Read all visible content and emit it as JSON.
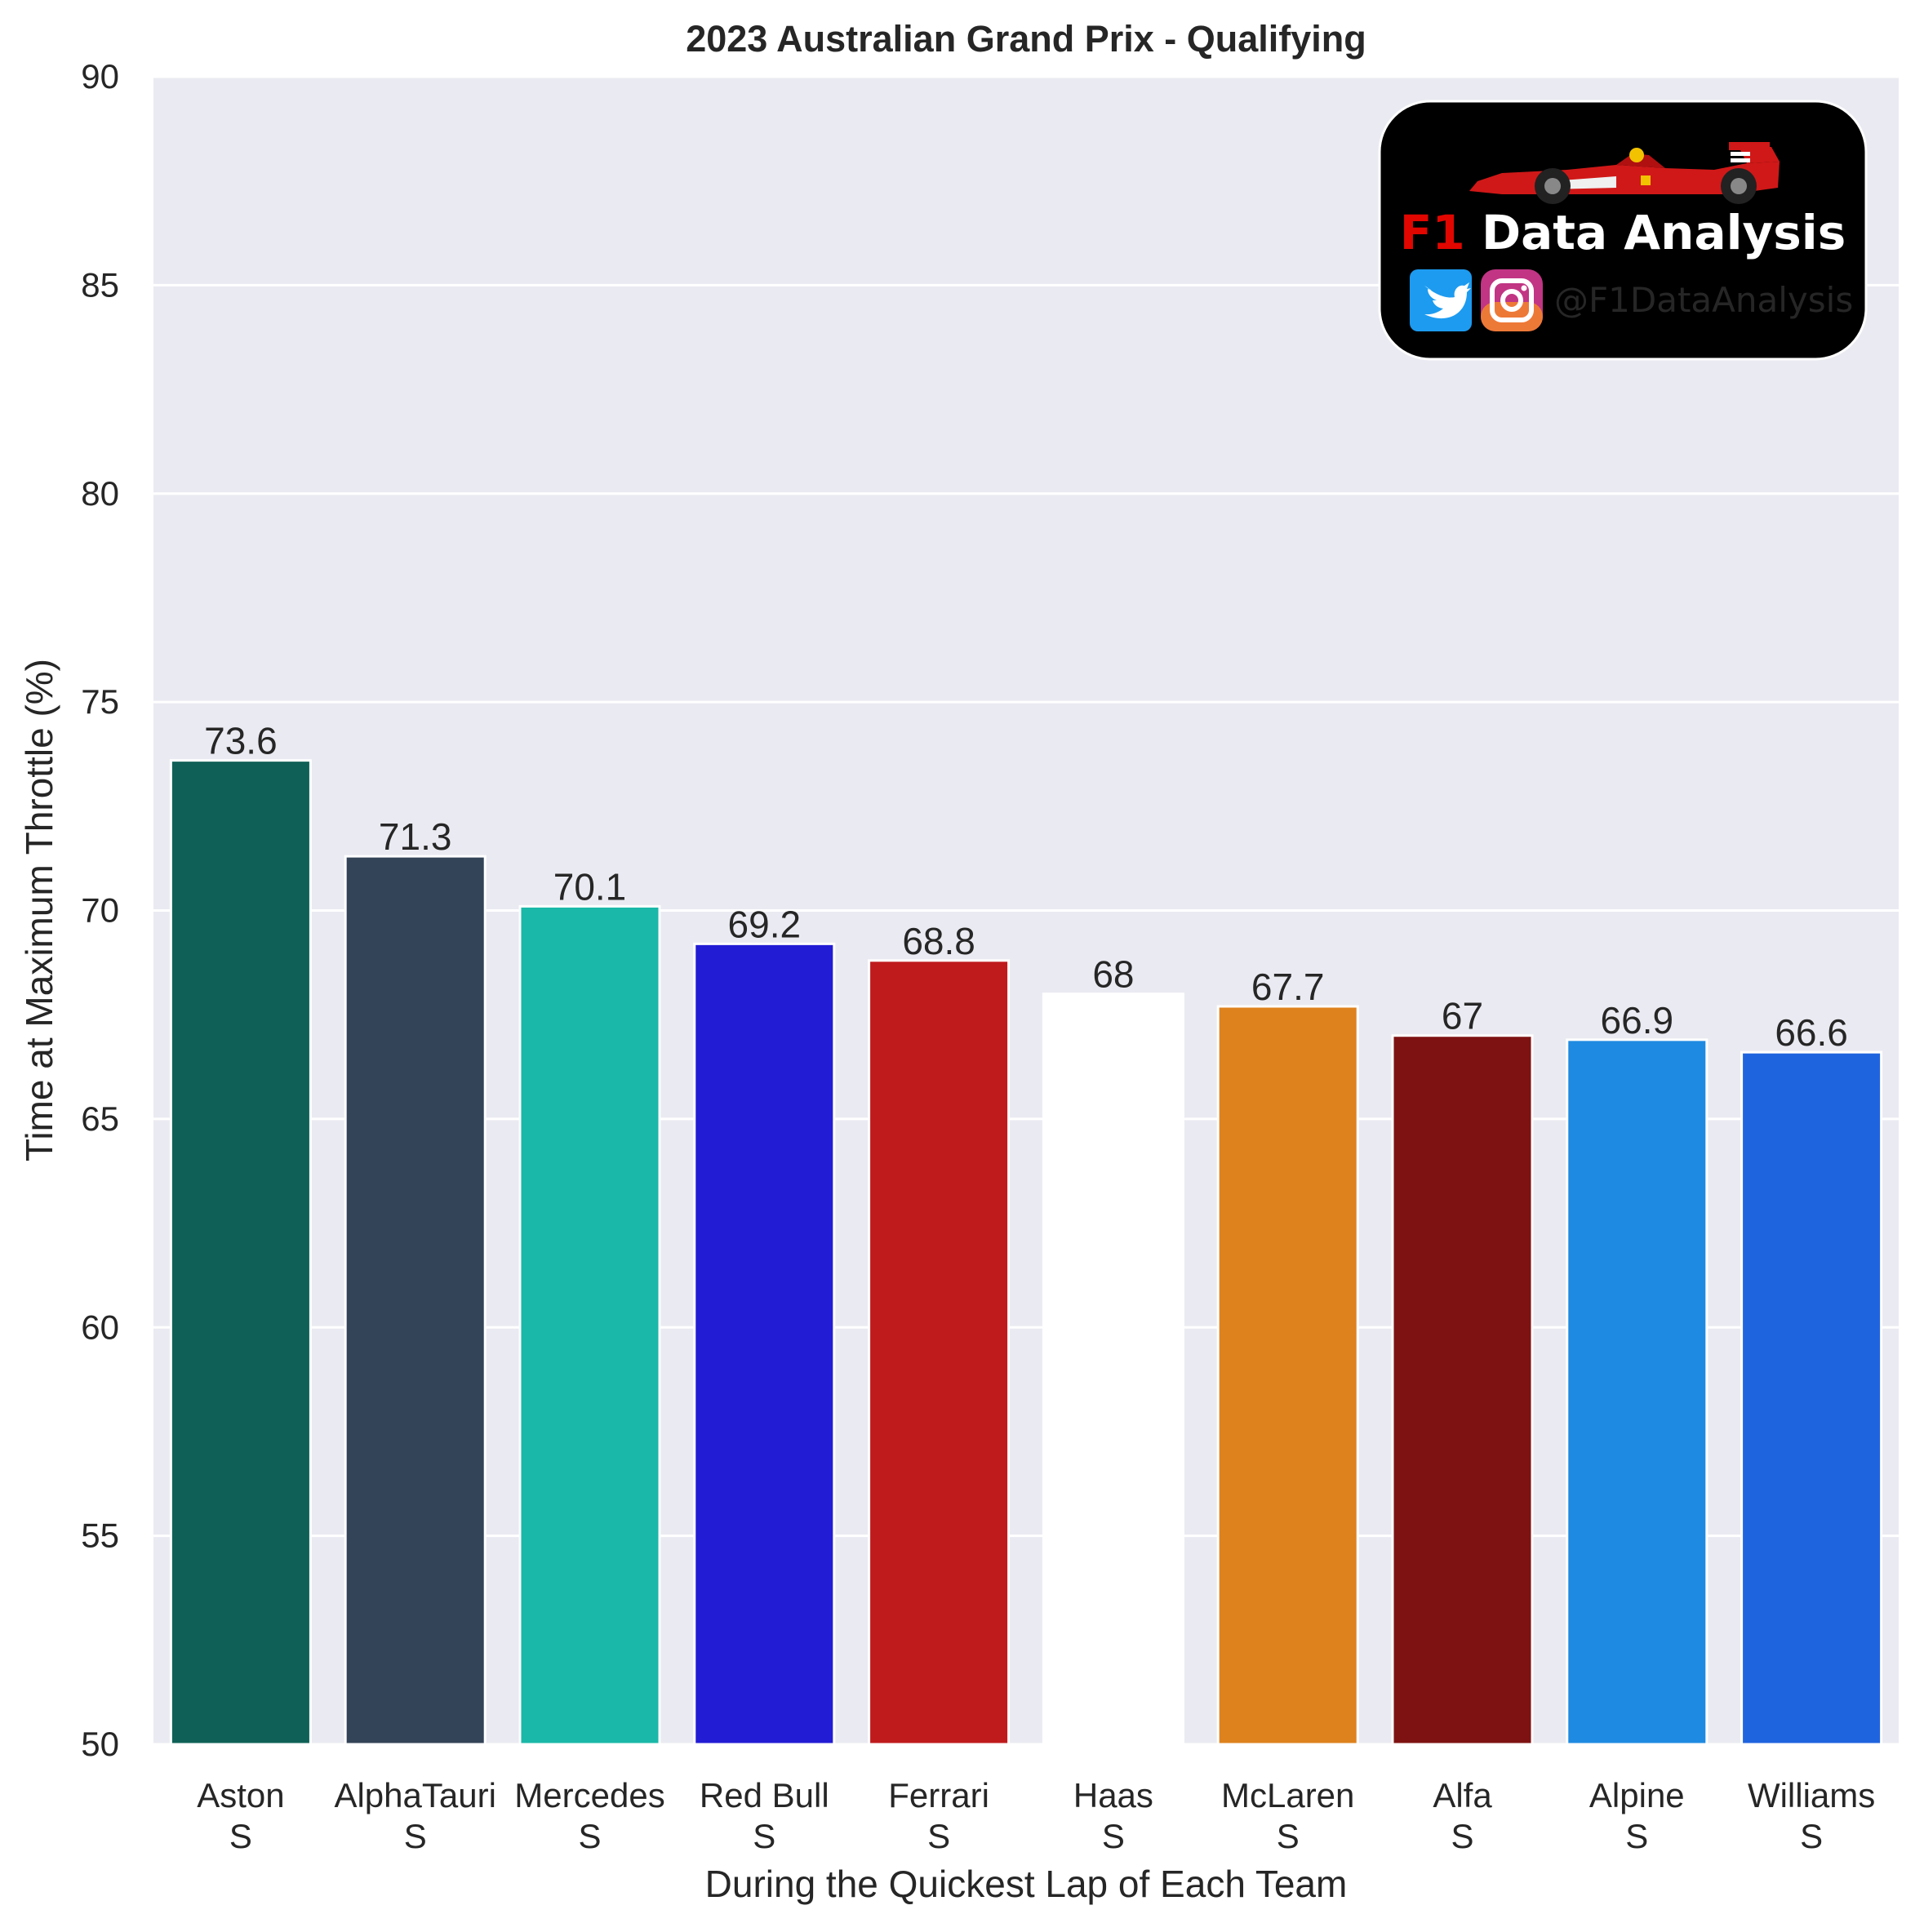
{
  "chart_data": {
    "type": "bar",
    "title": "2023 Australian Grand Prix - Qualifying",
    "xlabel": "During the Quickest Lap of Each Team",
    "ylabel": "Time at Maximum Throttle (%)",
    "ylim": [
      50,
      90
    ],
    "yticks": [
      50,
      55,
      60,
      65,
      70,
      75,
      80,
      85,
      90
    ],
    "grid": true,
    "categories": [
      "Aston",
      "AlphaTauri",
      "Mercedes",
      "Red Bull",
      "Ferrari",
      "Haas",
      "McLaren",
      "Alfa",
      "Alpine",
      "Williams"
    ],
    "sublabels": [
      "S",
      "S",
      "S",
      "S",
      "S",
      "S",
      "S",
      "S",
      "S",
      "S"
    ],
    "values": [
      73.6,
      71.3,
      70.1,
      69.2,
      68.8,
      68,
      67.7,
      67,
      66.9,
      66.6
    ],
    "value_labels": [
      "73.6",
      "71.3",
      "70.1",
      "69.2",
      "68.8",
      "68",
      "67.7",
      "67",
      "66.9",
      "66.6"
    ],
    "colors": [
      "#0f6157",
      "#334358",
      "#1ab8a8",
      "#221cd4",
      "#bf1b1d",
      "#ffffff",
      "#de821e",
      "#7e1212",
      "#1f8ae1",
      "#1f64df"
    ]
  },
  "logo": {
    "brand_prefix": "F1",
    "brand_rest": " Data Analysis",
    "handle": "@F1DataAnalysis",
    "icons": [
      "race-car-icon",
      "twitter-icon",
      "instagram-icon"
    ],
    "colors": {
      "background": "#000000",
      "prefix": "#e10600",
      "text": "#ffffff",
      "twitter": "#1d9bf0"
    }
  },
  "theme": {
    "plot_background": "#eaeaf2",
    "grid": "#ffffff",
    "text": "#262626"
  }
}
